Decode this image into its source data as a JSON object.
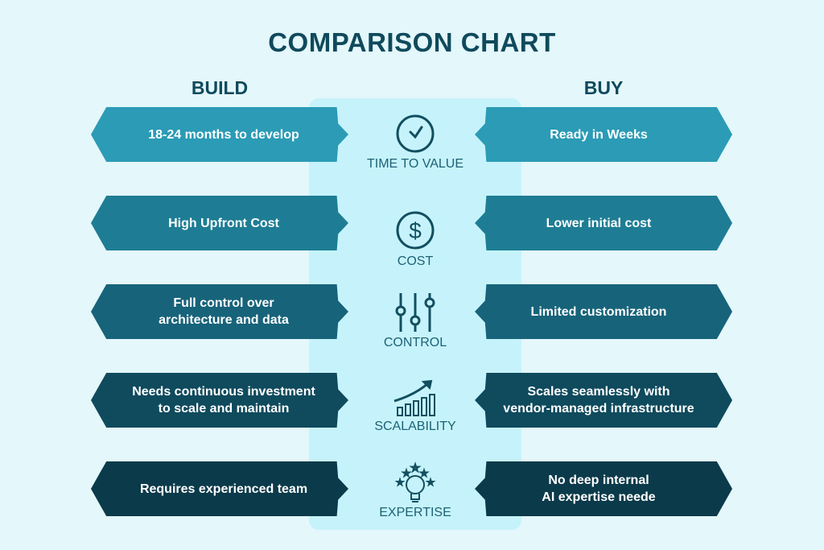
{
  "title": "COMPARISON CHART",
  "columns": {
    "left": "BUILD",
    "right": "BUY"
  },
  "rows": [
    {
      "criterion": "TIME TO VALUE",
      "icon": "clock-icon",
      "build": "18-24 months to develop",
      "buy": "Ready in Weeks",
      "color": "#2b9bb6"
    },
    {
      "criterion": "COST",
      "icon": "dollar-icon",
      "build": "High Upfront Cost",
      "buy": "Lower initial cost",
      "color": "#1e7d94"
    },
    {
      "criterion": "CONTROL",
      "icon": "sliders-icon",
      "build": "Full control over\narchitecture and data",
      "buy": "Limited customization",
      "color": "#17637a"
    },
    {
      "criterion": "SCALABILITY",
      "icon": "growth-chart-icon",
      "build": "Needs continuous investment\nto scale and maintain",
      "buy": "Scales seamlessly with\nvendor-managed infrastructure",
      "color": "#0f4a5d"
    },
    {
      "criterion": "EXPERTISE",
      "icon": "lightbulb-icon",
      "build": "Requires experienced team",
      "buy": "No deep internal\nAI expertise neede",
      "color": "#0b3a4a"
    }
  ]
}
